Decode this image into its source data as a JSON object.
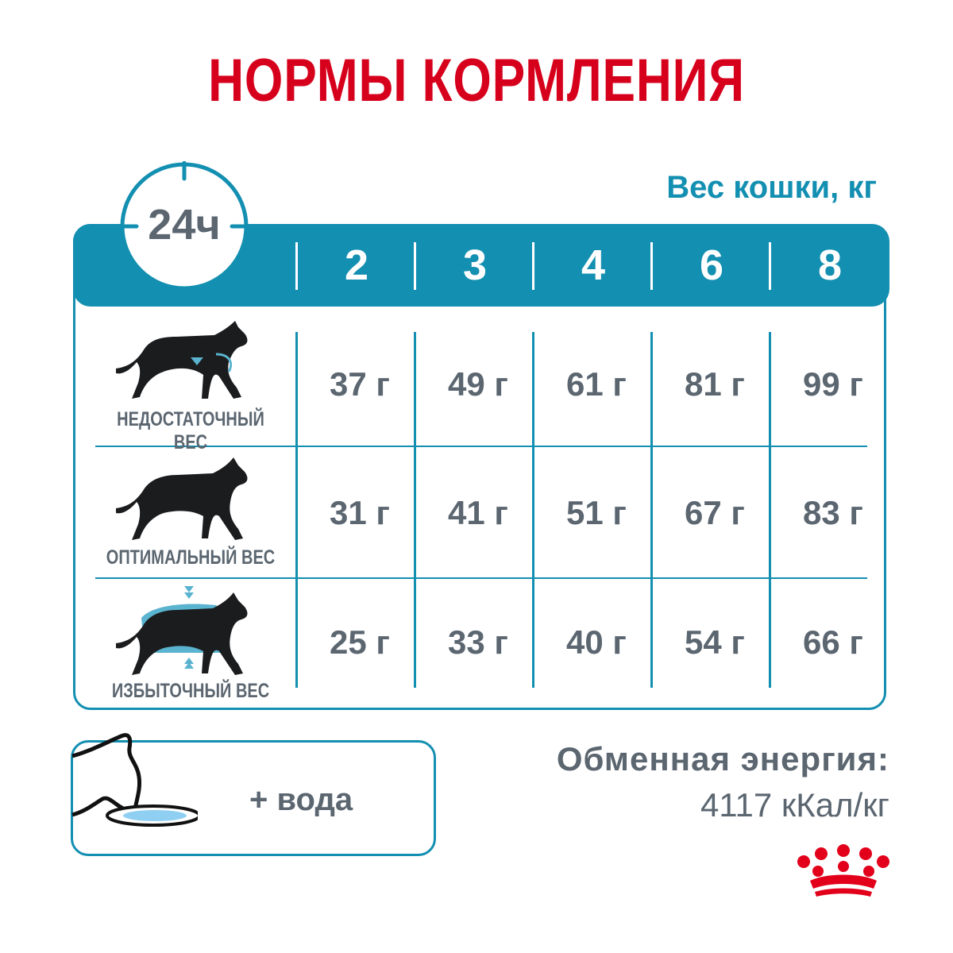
{
  "title": "НОРМЫ КОРМЛЕНИЯ",
  "period_badge": "24ч",
  "weight_header": "Вес кошки, кг",
  "columns": [
    "2",
    "3",
    "4",
    "6",
    "8"
  ],
  "rows": [
    {
      "label": "НЕДОСТАТОЧНЫЙ ВЕС",
      "icon": "cat-underweight-icon",
      "values": [
        "37 г",
        "49 г",
        "61 г",
        "81 г",
        "99 г"
      ]
    },
    {
      "label": "ОПТИМАЛЬНЫЙ ВЕС",
      "icon": "cat-optimal-icon",
      "values": [
        "31 г",
        "41 г",
        "51 г",
        "67 г",
        "83 г"
      ]
    },
    {
      "label": "ИЗБЫТОЧНЫЙ ВЕС",
      "icon": "cat-overweight-icon",
      "values": [
        "25 г",
        "33 г",
        "40 г",
        "54 г",
        "66 г"
      ]
    }
  ],
  "water": {
    "label": "+ вода",
    "icon": "cat-drinking-icon"
  },
  "energy": {
    "label": "Обменная энергия:",
    "value": "4117 кКал/кг"
  },
  "colors": {
    "title": "#d6001c",
    "accent": "#138fb1",
    "text": "#5b6670",
    "water": "#8ecff2"
  },
  "logo": "royal-canin-crown-logo"
}
